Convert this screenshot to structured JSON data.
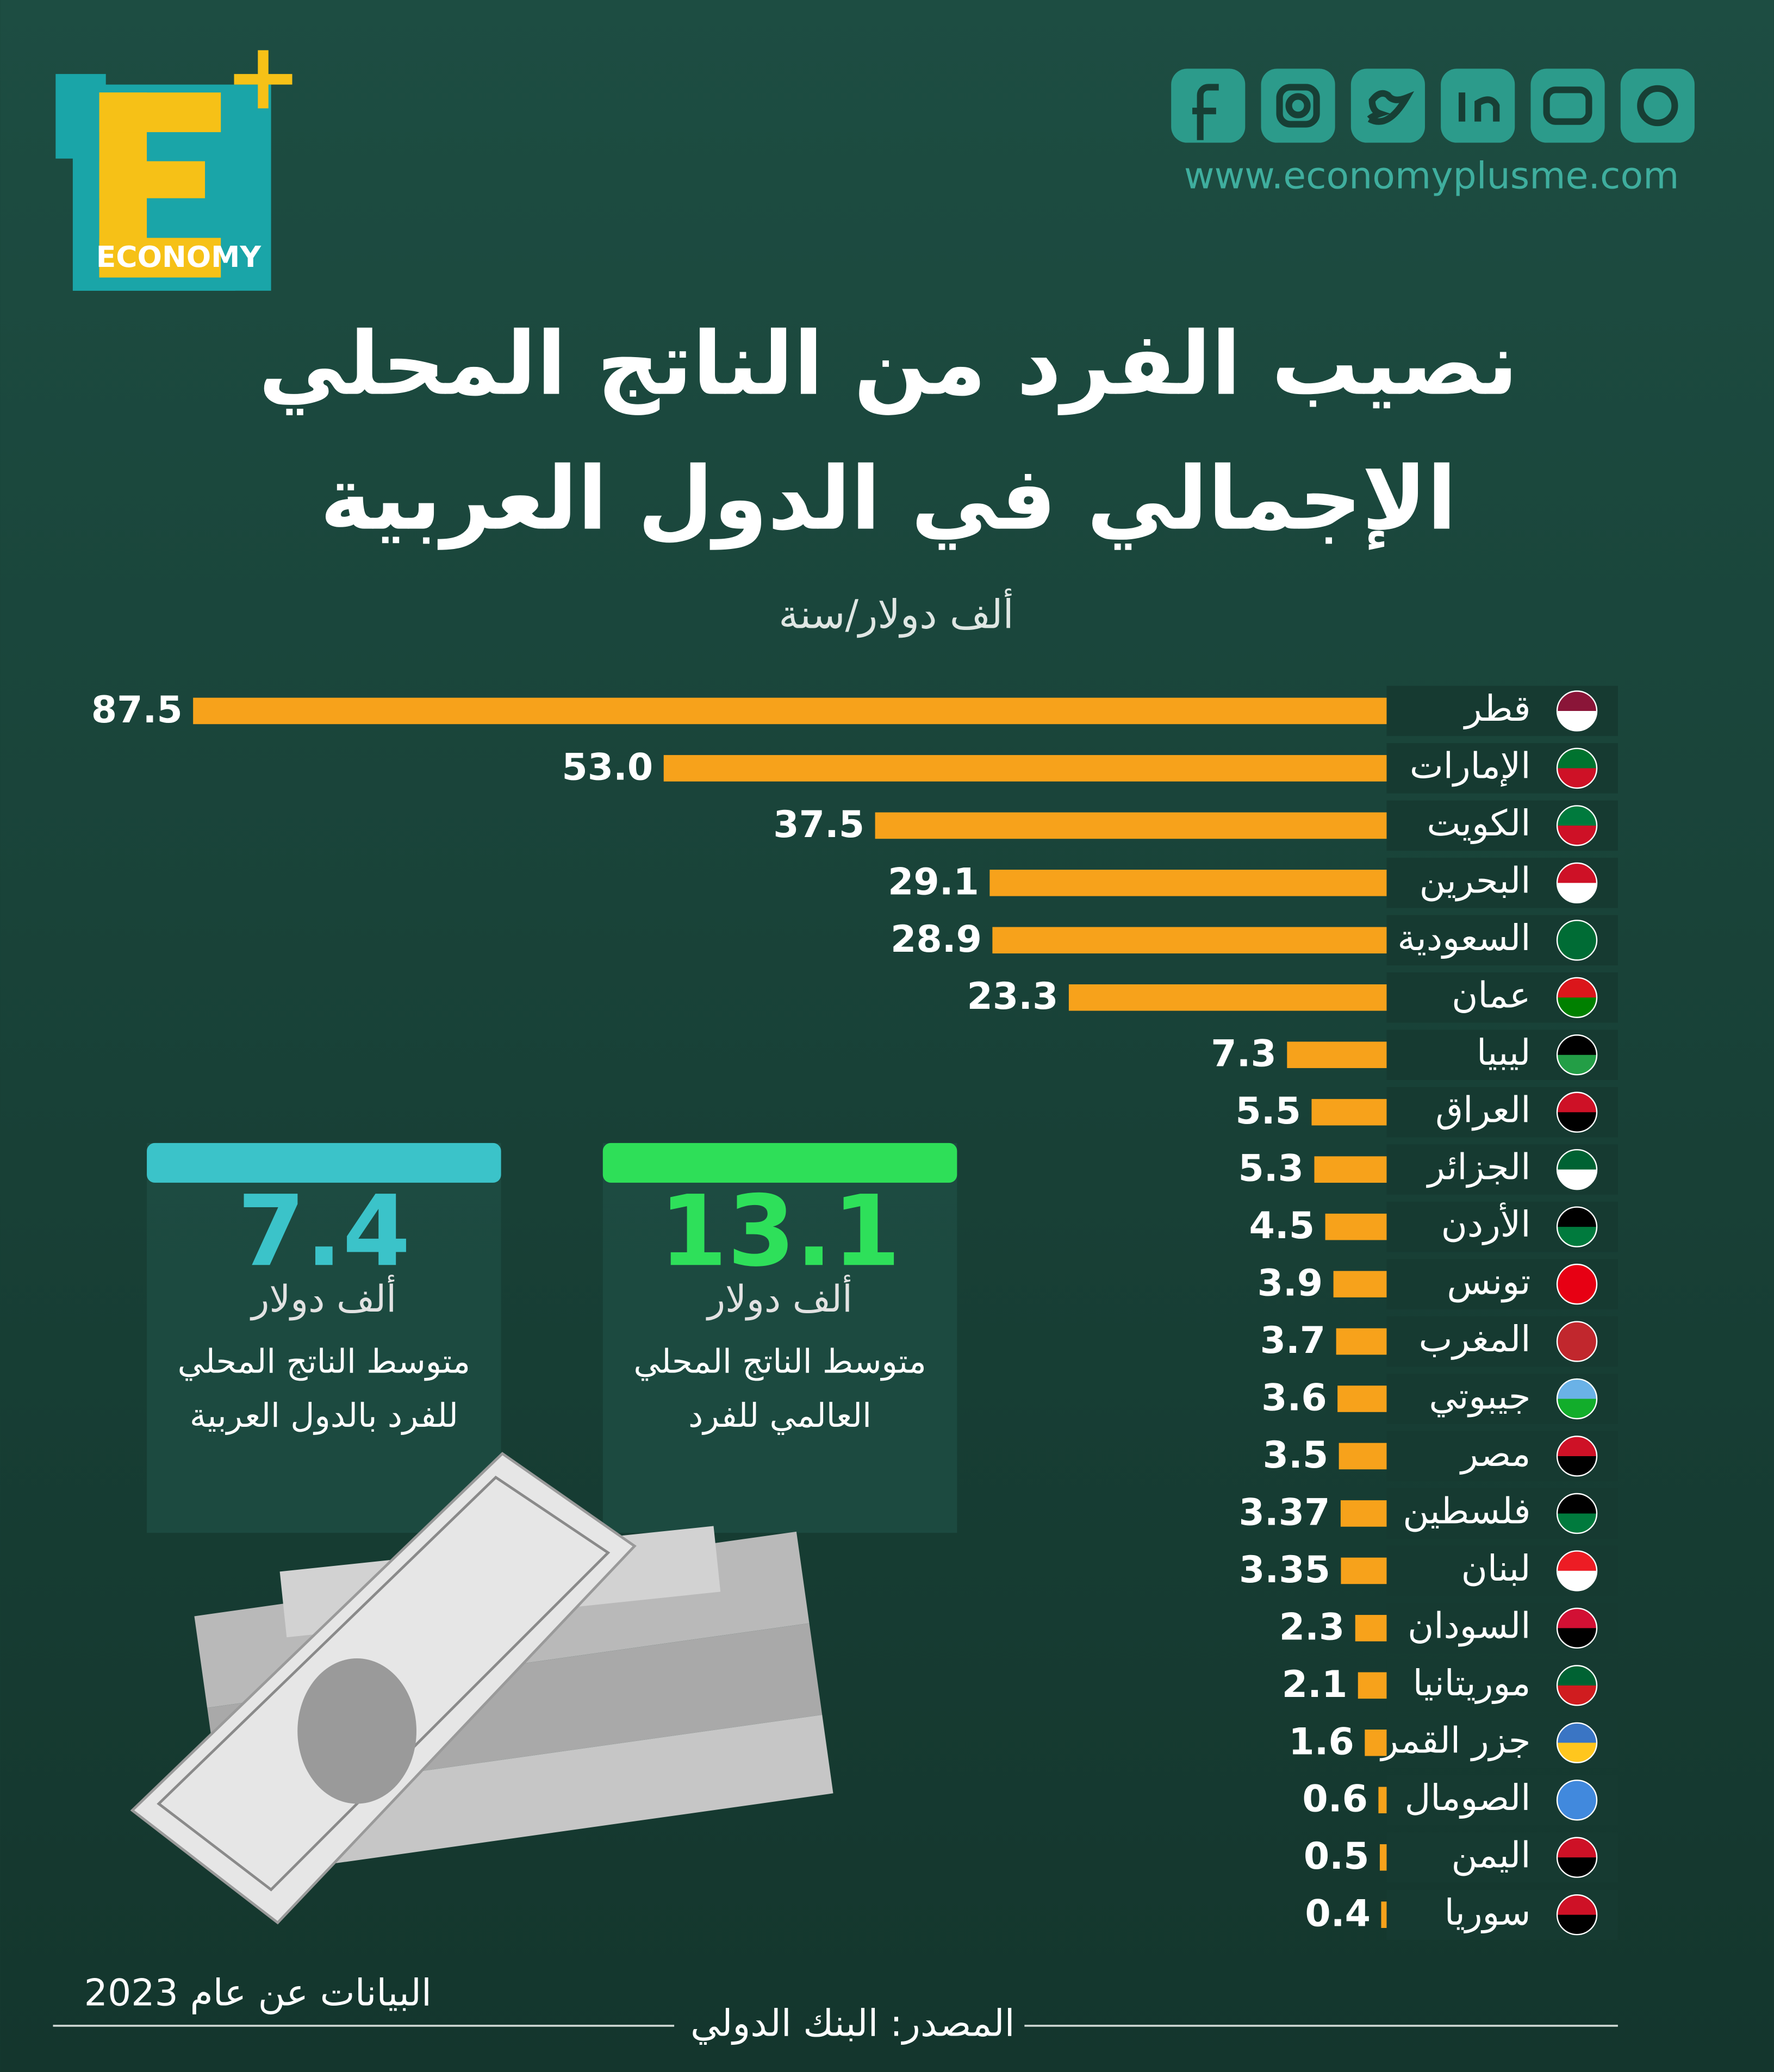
{
  "header": {
    "brand": "ECONOMY",
    "website": "www.economyplusme.com"
  },
  "chart_data": {
    "type": "bar",
    "orientation": "horizontal",
    "title": [
      "نصيب الفرد من الناتج المحلي",
      "الإجمالي في الدول العربية"
    ],
    "subtitle": "ألف دولار/سنة",
    "categories": [
      "قطر",
      "الإمارات",
      "الكويت",
      "البحرين",
      "السعودية",
      "عمان",
      "ليبيا",
      "العراق",
      "الجزائر",
      "الأردن",
      "تونس",
      "المغرب",
      "جيبوتي",
      "مصر",
      "فلسطين",
      "لبنان",
      "السودان",
      "موريتانيا",
      "جزر القمر",
      "الصومال",
      "اليمن",
      "سوريا"
    ],
    "values": [
      87.5,
      53.0,
      37.5,
      29.1,
      28.9,
      23.3,
      7.3,
      5.5,
      5.3,
      4.5,
      3.9,
      3.7,
      3.6,
      3.5,
      3.37,
      3.35,
      2.3,
      2.1,
      1.6,
      0.6,
      0.5,
      0.4
    ],
    "value_labels": [
      "87.5",
      "53.0",
      "37.5",
      "29.1",
      "28.9",
      "23.3",
      "7.3",
      "5.5",
      "5.3",
      "4.5",
      "3.9",
      "3.7",
      "3.6",
      "3.5",
      "3.37",
      "3.35",
      "2.3",
      "2.1",
      "1.6",
      "0.6",
      "0.5",
      "0.4"
    ],
    "color": "#f7a21b"
  },
  "stats": [
    {
      "value": 13.1,
      "unit": "ألف دولار",
      "description": [
        "متوسط الناتج المحلي",
        "العالمي للفرد"
      ]
    },
    {
      "value": 7.4,
      "unit": "ألف دولار",
      "description": [
        "متوسط الناتج المحلي",
        "للفرد بالدول العربية"
      ]
    }
  ],
  "footer": {
    "note": "البيانات عن عام 2023",
    "source": "المصدر: البنك الدولي"
  }
}
